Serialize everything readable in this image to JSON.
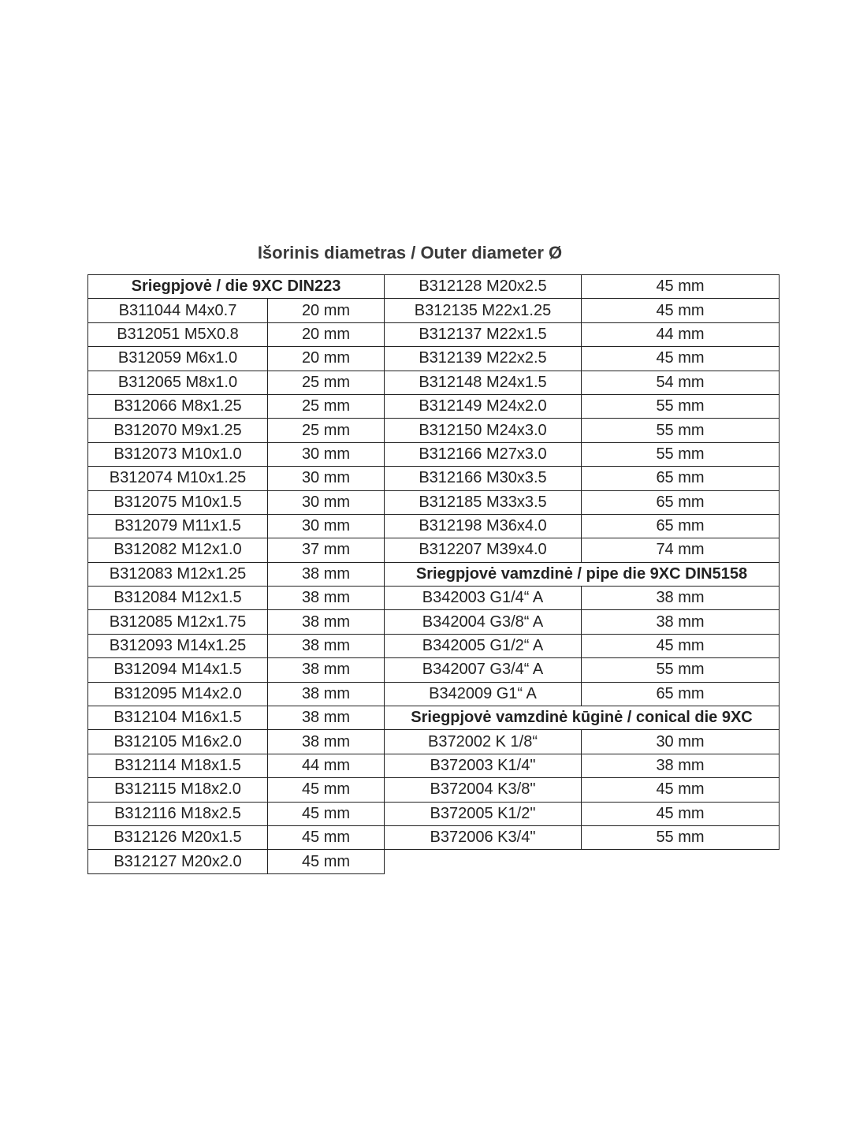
{
  "title": "Išorinis diametras / Outer diameter Ø",
  "left_table": {
    "header": "Sriegpjovė / die 9XC DIN223",
    "rows": [
      [
        "B311044 M4x0.7",
        "20 mm"
      ],
      [
        "B312051 M5X0.8",
        "20 mm"
      ],
      [
        "B312059 M6x1.0",
        "20 mm"
      ],
      [
        "B312065 M8x1.0",
        "25 mm"
      ],
      [
        "B312066 M8x1.25",
        "25 mm"
      ],
      [
        "B312070 M9x1.25",
        "25 mm"
      ],
      [
        "B312073 M10x1.0",
        "30 mm"
      ],
      [
        "B312074 M10x1.25",
        "30 mm"
      ],
      [
        "B312075 M10x1.5",
        "30 mm"
      ],
      [
        "B312079 M11x1.5",
        "30 mm"
      ],
      [
        "B312082 M12x1.0",
        "37 mm"
      ],
      [
        "B312083 M12x1.25",
        "38 mm"
      ],
      [
        "B312084 M12x1.5",
        "38 mm"
      ],
      [
        "B312085 M12x1.75",
        "38 mm"
      ],
      [
        "B312093 M14x1.25",
        "38 mm"
      ],
      [
        "B312094 M14x1.5",
        "38 mm"
      ],
      [
        "B312095 M14x2.0",
        "38 mm"
      ],
      [
        "B312104 M16x1.5",
        "38 mm"
      ],
      [
        "B312105 M16x2.0",
        "38 mm"
      ],
      [
        "B312114 M18x1.5",
        "44 mm"
      ],
      [
        "B312115 M18x2.0",
        "45 mm"
      ],
      [
        "B312116 M18x2.5",
        "45 mm"
      ],
      [
        "B312126 M20x1.5",
        "45 mm"
      ],
      [
        "B312127 M20x2.0",
        "45 mm"
      ]
    ]
  },
  "right_table": {
    "rows": [
      [
        "B312128 M20x2.5",
        "45 mm"
      ],
      [
        "B312135 M22x1.25",
        "45 mm"
      ],
      [
        "B312137 M22x1.5",
        "44 mm"
      ],
      [
        "B312139 M22x2.5",
        "45 mm"
      ],
      [
        "B312148 M24x1.5",
        "54 mm"
      ],
      [
        "B312149 M24x2.0",
        "55 mm"
      ],
      [
        "B312150 M24x3.0",
        "55 mm"
      ],
      [
        "B312166 M27x3.0",
        "55 mm"
      ],
      [
        "B312166 M30x3.5",
        "65 mm"
      ],
      [
        "B312185 M33x3.5",
        "65 mm"
      ],
      [
        "B312198 M36x4.0",
        "65 mm"
      ],
      [
        "B312207 M39x4.0",
        "74 mm"
      ],
      [
        "Sriegpjovė vamzdinė / pipe die 9XC DIN5158"
      ],
      [
        "B342003 G1/4“ A",
        "38 mm"
      ],
      [
        "B342004 G3/8“ A",
        "38 mm"
      ],
      [
        "B342005 G1/2“ A",
        "45 mm"
      ],
      [
        "B342007 G3/4“ A",
        "55 mm"
      ],
      [
        "B342009 G1“ A",
        "65 mm"
      ],
      [
        "Sriegpjovė vamzdinė kūginė / conical die 9XC"
      ],
      [
        "B372002 K 1/8“",
        "30 mm"
      ],
      [
        "B372003 K1/4\"",
        "38 mm"
      ],
      [
        "B372004 K3/8\"",
        "45 mm"
      ],
      [
        "B372005 K1/2\"",
        "45 mm"
      ],
      [
        "B372006 K3/4\"",
        "55 mm"
      ]
    ]
  }
}
